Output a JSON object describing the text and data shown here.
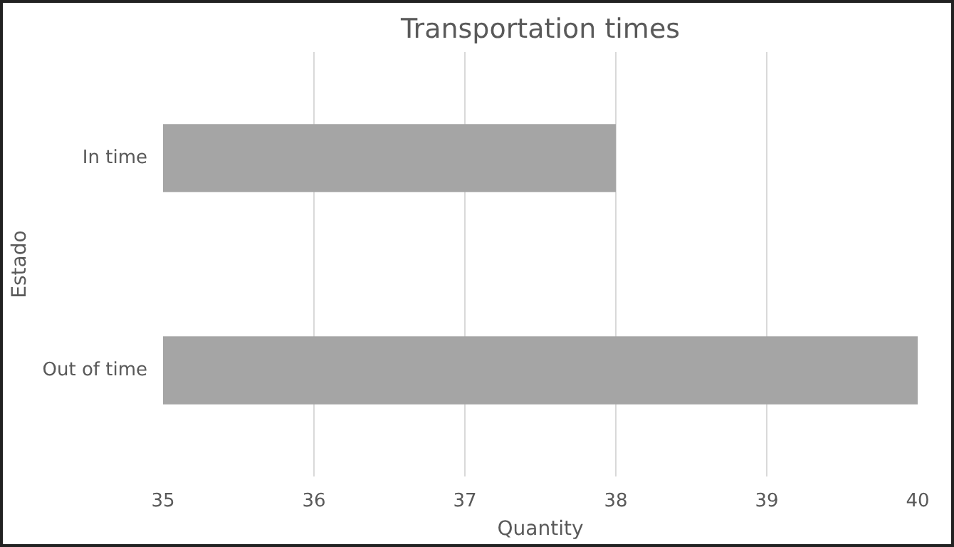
{
  "chart_data": {
    "type": "bar",
    "orientation": "horizontal",
    "title": "Transportation times",
    "xlabel": "Quantity",
    "ylabel": "Estado",
    "categories": [
      "In time",
      "Out of time"
    ],
    "values": [
      38,
      40
    ],
    "color": "#a5a5a5",
    "xlim": [
      35,
      40
    ],
    "xticks": [
      35,
      36,
      37,
      38,
      39,
      40
    ],
    "grid": "x"
  }
}
